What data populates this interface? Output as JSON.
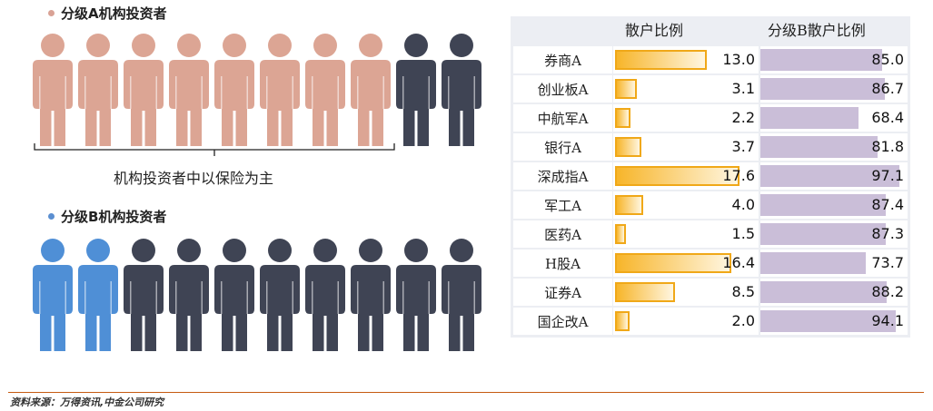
{
  "legend_a": {
    "label": "分级A机构投资者",
    "dot_color": "#d9a295"
  },
  "legend_b": {
    "label": "分级B机构投资者",
    "dot_color": "#5b8fd1"
  },
  "group_a_people": [
    "salmon",
    "salmon",
    "salmon",
    "salmon",
    "salmon",
    "salmon",
    "salmon",
    "salmon",
    "navy",
    "navy"
  ],
  "group_b_people": [
    "blue",
    "blue",
    "navy",
    "navy",
    "navy",
    "navy",
    "navy",
    "navy",
    "navy",
    "navy"
  ],
  "person_colors": {
    "salmon": "#dca594",
    "navy": "#3f4454",
    "blue": "#4f8fd6"
  },
  "brace_label": "机构投资者中以保险为主",
  "table": {
    "col_a_header": "散户比例",
    "col_b_header": "分级B散户比例",
    "max_a": 20,
    "max_b": 100,
    "rows": [
      {
        "name": "券商A",
        "a_value": "13.0",
        "b_value": "85.0"
      },
      {
        "name": "创业板A",
        "a_value": "3.1",
        "b_value": "86.7"
      },
      {
        "name": "中航军A",
        "a_value": "2.2",
        "b_value": "68.4"
      },
      {
        "name": "银行A",
        "a_value": "3.7",
        "b_value": "81.8"
      },
      {
        "name": "深成指A",
        "a_value": "17.6",
        "b_value": "97.1"
      },
      {
        "name": "军工A",
        "a_value": "4.0",
        "b_value": "87.4"
      },
      {
        "name": "医药A",
        "a_value": "1.5",
        "b_value": "87.3"
      },
      {
        "name": "H股A",
        "a_value": "16.4",
        "b_value": "73.7"
      },
      {
        "name": "证券A",
        "a_value": "8.5",
        "b_value": "88.2"
      },
      {
        "name": "国企改A",
        "a_value": "2.0",
        "b_value": "94.1"
      }
    ]
  },
  "source": "资料来源：万得资讯,中金公司研究"
}
